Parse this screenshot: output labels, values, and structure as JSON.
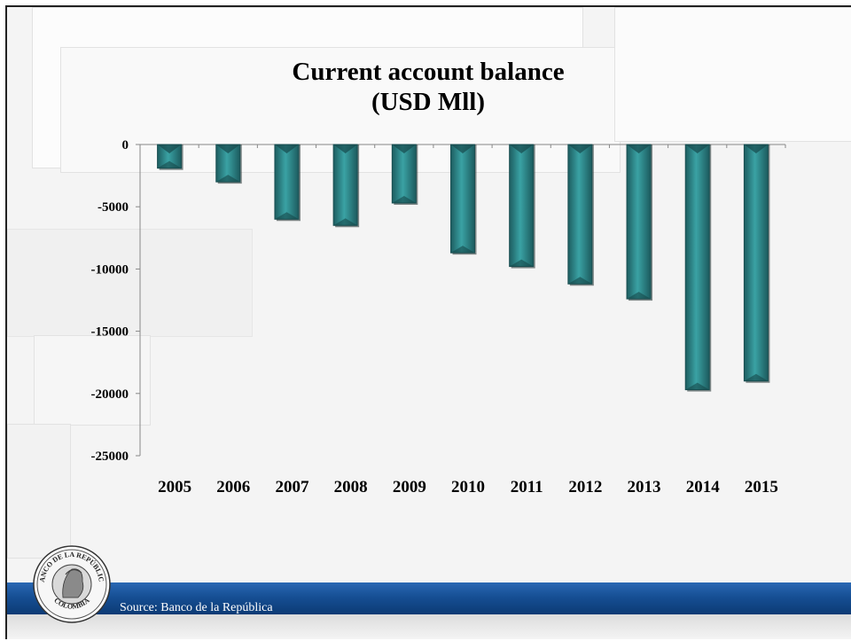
{
  "chart_data": {
    "type": "bar",
    "title": "Current account balance",
    "subtitle": "(USD Mll)",
    "categories": [
      "2005",
      "2006",
      "2007",
      "2008",
      "2009",
      "2010",
      "2011",
      "2012",
      "2013",
      "2014",
      "2015"
    ],
    "values": [
      -1900,
      -3000,
      -6000,
      -6500,
      -4700,
      -8700,
      -9800,
      -11200,
      -12400,
      -19700,
      -19000
    ],
    "ylim": [
      -25000,
      0
    ],
    "yticks": [
      "0",
      "-5000",
      "-10000",
      "-15000",
      "-20000",
      "-25000"
    ],
    "ytick_values": [
      0,
      -5000,
      -10000,
      -15000,
      -20000,
      -25000
    ],
    "bar_color": "#2f8b8e",
    "grid": false,
    "legend": "none"
  },
  "footer": {
    "source": "Source: Banco de la República",
    "bar_color": "#164f94"
  },
  "seal": {
    "text_top": "BANCO DE LA REPÚBLICA",
    "text_bottom": "COLOMBIA"
  }
}
